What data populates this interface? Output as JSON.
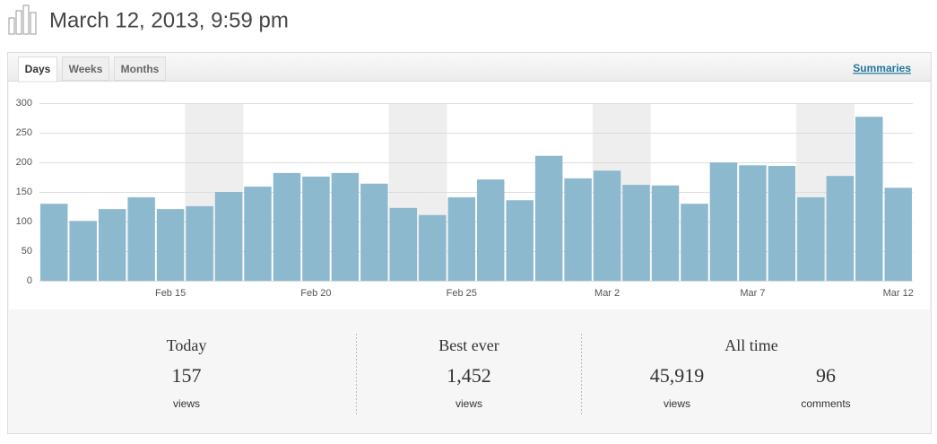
{
  "header": {
    "title": "March 12, 2013, 9:59 pm"
  },
  "tabs": [
    "Days",
    "Weeks",
    "Months"
  ],
  "link": "Summaries",
  "chart_data": {
    "type": "bar",
    "categories": [
      null,
      null,
      null,
      null,
      "Feb 15",
      null,
      null,
      null,
      null,
      "Feb 20",
      null,
      null,
      null,
      null,
      "Feb 25",
      null,
      null,
      null,
      null,
      "Mar 2",
      null,
      null,
      null,
      null,
      "Mar 7",
      null,
      null,
      null,
      null,
      "Mar 12"
    ],
    "values": [
      130,
      101,
      121,
      141,
      121,
      126,
      150,
      159,
      182,
      176,
      182,
      164,
      123,
      111,
      141,
      171,
      136,
      211,
      173,
      186,
      162,
      161,
      130,
      200,
      195,
      194,
      141,
      177,
      277,
      157
    ],
    "color": "#8cb9cd",
    "shaded": [
      5,
      6,
      12,
      13,
      19,
      20,
      26,
      27
    ],
    "ylim": [
      0,
      300
    ],
    "yticks": [
      0,
      50,
      100,
      150,
      200,
      250,
      300
    ],
    "grid": true
  },
  "stats": [
    {
      "label": "Today",
      "items": [
        {
          "value": "157",
          "unit": "views"
        }
      ]
    },
    {
      "label": "Best ever",
      "items": [
        {
          "value": "1,452",
          "unit": "views"
        }
      ]
    },
    {
      "label": "All time",
      "items": [
        {
          "value": "45,919",
          "unit": "views"
        },
        {
          "value": "96",
          "unit": "comments"
        }
      ]
    }
  ]
}
